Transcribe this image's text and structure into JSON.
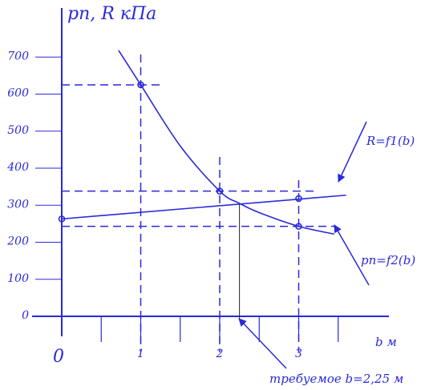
{
  "chart_data": {
    "type": "line",
    "title": "",
    "ylabel": "pп, R кПа",
    "xlabel": "b м",
    "xlim": [
      0,
      4.1
    ],
    "ylim": [
      0,
      750
    ],
    "y_ticks": [
      {
        "value": 0,
        "label": "0"
      },
      {
        "value": 100,
        "label": "100"
      },
      {
        "value": 200,
        "label": "200"
      },
      {
        "value": 300,
        "label": "300"
      },
      {
        "value": 400,
        "label": "400"
      },
      {
        "value": 500,
        "label": "500"
      },
      {
        "value": 600,
        "label": "600"
      },
      {
        "value": 700,
        "label": "700"
      }
    ],
    "x_ticks": [
      {
        "value": 0,
        "label": "0"
      },
      {
        "value": 1,
        "label": "1"
      },
      {
        "value": 2,
        "label": "2"
      },
      {
        "value": 3,
        "label": "3"
      }
    ],
    "x_minor_ticks": [
      0.5,
      1.5,
      2.5,
      3.5
    ],
    "series": [
      {
        "name": "R=f1(b)",
        "color": "#2a2ad8",
        "x": [
          0,
          3.6
        ],
        "y": [
          263,
          327
        ],
        "markers_x": [
          0,
          3
        ]
      },
      {
        "name": "pп=f2(b)",
        "color": "#2a2ad8",
        "x": [
          0.72,
          1,
          1.5,
          2,
          2.25,
          2.5,
          3,
          3.45
        ],
        "y": [
          718,
          625,
          460,
          338,
          305,
          280,
          243,
          222
        ],
        "markers_x": [
          1,
          2,
          3
        ]
      }
    ],
    "markers": [
      {
        "x": 1,
        "y": 625
      },
      {
        "x": 2,
        "y": 338
      },
      {
        "x": 3,
        "y": 318
      },
      {
        "x": 3,
        "y": 243
      },
      {
        "x": 0,
        "y": 263
      }
    ],
    "dashed_guides": {
      "vertical_x": [
        1,
        2,
        3
      ],
      "horizontal_y": [
        625,
        338,
        243
      ]
    },
    "solution": {
      "x": 2.25,
      "y": 303
    },
    "annotations": {
      "r_curve": "R=f1(b)",
      "p_curve": "pп=f2(b)",
      "required": "требуемое b=2,25 м"
    },
    "grid": false,
    "legend": "none"
  }
}
